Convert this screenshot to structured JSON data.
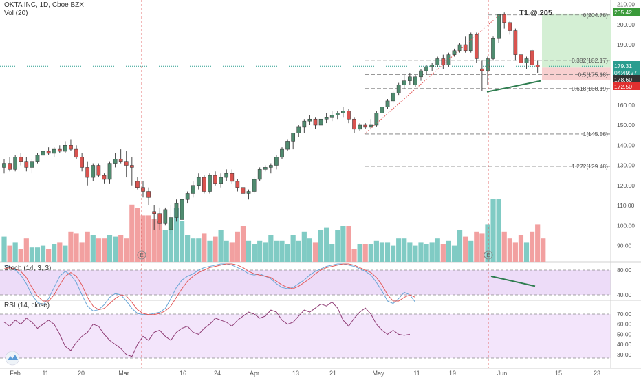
{
  "header": {
    "symbol_line": "OKTA INC, 1D, Cboe BZX",
    "vol_label": "Vol (20)"
  },
  "colors": {
    "up": "#53a292",
    "up_body": "#4f8b6f",
    "down": "#d9534f",
    "vol_up": "#80cbc4",
    "vol_down": "#f2a0a0",
    "stoch_k": "#6aa6d6",
    "stoch_d": "#e35b5b",
    "stoch_bg": "#e3c9f5",
    "rsi_line": "#8e3b74",
    "rsi_bg": "#f3e5fb",
    "target_zone": "#d4efd4",
    "stop_zone": "#f8d0d0",
    "trendline": "#2e7d4f",
    "fib": "#777777",
    "event_line": "#e05050"
  },
  "price_axis": {
    "ticks": [
      "210.00",
      "200.00",
      "190.00",
      "180.00",
      "170.00",
      "160.00",
      "150.00",
      "140.00",
      "130.00",
      "120.00",
      "110.00",
      "100.00",
      "90.00"
    ],
    "price_labels": [
      {
        "text": "205.42",
        "color": "#3a9a3a"
      },
      {
        "text": "179.31",
        "color": "#2a9d8f"
      },
      {
        "text": "04:49:27",
        "color": "#2a9d8f"
      },
      {
        "text": "178.60",
        "color": "#333333"
      },
      {
        "text": "172.50",
        "color": "#e03030"
      }
    ]
  },
  "stoch_axis": {
    "ticks": [
      "80.00",
      "40.00"
    ]
  },
  "rsi_axis": {
    "ticks": [
      "70.00",
      "60.00",
      "50.00",
      "40.00",
      "30.00"
    ]
  },
  "time_axis": {
    "labels": [
      "Feb",
      "11",
      "20",
      "Mar",
      "16",
      "24",
      "Apr",
      "13",
      "21",
      "May",
      "11",
      "19",
      "Jun",
      "15",
      "23"
    ]
  },
  "annotations": {
    "target": "T1 @ 205",
    "fib_levels": [
      "0(204.78)",
      "0.382(182.17)",
      "0.5(175.18)",
      "0.618(168.19)",
      "1(145.58)",
      "1.272(129.48)"
    ],
    "event_marker": "E"
  },
  "indicators": {
    "stoch_label": "Stoch (14, 3, 3)",
    "rsi_label": "RSI (14, close)"
  },
  "chart_data": {
    "type": "candlestick",
    "title": "OKTA INC, 1D, Cboe BZX",
    "ylim": [
      84,
      213
    ],
    "candles": [
      {
        "o": 129,
        "h": 133,
        "l": 126,
        "c": 131
      },
      {
        "o": 131,
        "h": 134,
        "l": 127,
        "c": 128
      },
      {
        "o": 128,
        "h": 135,
        "l": 127,
        "c": 134
      },
      {
        "o": 134,
        "h": 136,
        "l": 130,
        "c": 132
      },
      {
        "o": 132,
        "h": 134,
        "l": 127,
        "c": 129
      },
      {
        "o": 129,
        "h": 133,
        "l": 126,
        "c": 132
      },
      {
        "o": 132,
        "h": 136,
        "l": 131,
        "c": 135
      },
      {
        "o": 135,
        "h": 138,
        "l": 133,
        "c": 137
      },
      {
        "o": 137,
        "h": 139,
        "l": 135,
        "c": 136
      },
      {
        "o": 136,
        "h": 139,
        "l": 134,
        "c": 138
      },
      {
        "o": 138,
        "h": 140,
        "l": 136,
        "c": 137
      },
      {
        "o": 137,
        "h": 142,
        "l": 136,
        "c": 140
      },
      {
        "o": 140,
        "h": 143,
        "l": 137,
        "c": 138
      },
      {
        "o": 138,
        "h": 140,
        "l": 133,
        "c": 134
      },
      {
        "o": 134,
        "h": 136,
        "l": 127,
        "c": 129
      },
      {
        "o": 129,
        "h": 132,
        "l": 120,
        "c": 124
      },
      {
        "o": 124,
        "h": 131,
        "l": 122,
        "c": 130
      },
      {
        "o": 130,
        "h": 131,
        "l": 124,
        "c": 125
      },
      {
        "o": 125,
        "h": 126,
        "l": 121,
        "c": 123
      },
      {
        "o": 123,
        "h": 132,
        "l": 121,
        "c": 131
      },
      {
        "o": 131,
        "h": 136,
        "l": 129,
        "c": 133
      },
      {
        "o": 133,
        "h": 138,
        "l": 131,
        "c": 132
      },
      {
        "o": 132,
        "h": 137,
        "l": 124,
        "c": 130
      },
      {
        "o": 130,
        "h": 134,
        "l": 120,
        "c": 129
      },
      {
        "o": 122,
        "h": 124,
        "l": 118,
        "c": 119
      },
      {
        "o": 119,
        "h": 122,
        "l": 114,
        "c": 117
      },
      {
        "o": 117,
        "h": 119,
        "l": 110,
        "c": 114
      },
      {
        "o": 107,
        "h": 110,
        "l": 98,
        "c": 106
      },
      {
        "o": 106,
        "h": 109,
        "l": 98,
        "c": 101
      },
      {
        "o": 101,
        "h": 109,
        "l": 100,
        "c": 108
      },
      {
        "o": 98,
        "h": 110,
        "l": 96,
        "c": 104
      },
      {
        "o": 104,
        "h": 113,
        "l": 102,
        "c": 111
      },
      {
        "o": 103,
        "h": 115,
        "l": 101,
        "c": 113
      },
      {
        "o": 113,
        "h": 117,
        "l": 111,
        "c": 116
      },
      {
        "o": 116,
        "h": 122,
        "l": 114,
        "c": 120
      },
      {
        "o": 120,
        "h": 126,
        "l": 118,
        "c": 124
      },
      {
        "o": 124,
        "h": 125,
        "l": 116,
        "c": 117
      },
      {
        "o": 117,
        "h": 126,
        "l": 116,
        "c": 125
      },
      {
        "o": 125,
        "h": 127,
        "l": 120,
        "c": 121
      },
      {
        "o": 121,
        "h": 126,
        "l": 119,
        "c": 124
      },
      {
        "o": 124,
        "h": 128,
        "l": 122,
        "c": 126
      },
      {
        "o": 126,
        "h": 128,
        "l": 121,
        "c": 122
      },
      {
        "o": 122,
        "h": 123,
        "l": 117,
        "c": 119
      },
      {
        "o": 119,
        "h": 121,
        "l": 114,
        "c": 116
      },
      {
        "o": 116,
        "h": 118,
        "l": 113,
        "c": 117
      },
      {
        "o": 117,
        "h": 124,
        "l": 116,
        "c": 123
      },
      {
        "o": 123,
        "h": 129,
        "l": 122,
        "c": 128
      },
      {
        "o": 128,
        "h": 130,
        "l": 127,
        "c": 129
      },
      {
        "o": 129,
        "h": 131,
        "l": 126,
        "c": 130
      },
      {
        "o": 130,
        "h": 135,
        "l": 128,
        "c": 134
      },
      {
        "o": 134,
        "h": 139,
        "l": 133,
        "c": 138
      },
      {
        "o": 138,
        "h": 143,
        "l": 137,
        "c": 142
      },
      {
        "o": 142,
        "h": 145,
        "l": 138,
        "c": 146
      },
      {
        "o": 146,
        "h": 150,
        "l": 144,
        "c": 149
      },
      {
        "o": 149,
        "h": 153,
        "l": 146,
        "c": 152
      },
      {
        "o": 152,
        "h": 155,
        "l": 150,
        "c": 153
      },
      {
        "o": 153,
        "h": 154,
        "l": 148,
        "c": 150
      },
      {
        "o": 150,
        "h": 154,
        "l": 149,
        "c": 153
      },
      {
        "o": 153,
        "h": 156,
        "l": 151,
        "c": 154
      },
      {
        "o": 154,
        "h": 157,
        "l": 152,
        "c": 155
      },
      {
        "o": 155,
        "h": 157,
        "l": 153,
        "c": 156
      },
      {
        "o": 156,
        "h": 159,
        "l": 154,
        "c": 157
      },
      {
        "o": 157,
        "h": 158,
        "l": 151,
        "c": 153
      },
      {
        "o": 153,
        "h": 154,
        "l": 146,
        "c": 148
      },
      {
        "o": 148,
        "h": 151,
        "l": 147,
        "c": 150
      },
      {
        "o": 150,
        "h": 151,
        "l": 148,
        "c": 149
      },
      {
        "o": 149,
        "h": 153,
        "l": 148,
        "c": 150
      },
      {
        "o": 150,
        "h": 157,
        "l": 149,
        "c": 156
      },
      {
        "o": 156,
        "h": 160,
        "l": 155,
        "c": 159
      },
      {
        "o": 159,
        "h": 163,
        "l": 158,
        "c": 162
      },
      {
        "o": 162,
        "h": 167,
        "l": 161,
        "c": 166
      },
      {
        "o": 166,
        "h": 171,
        "l": 165,
        "c": 170
      },
      {
        "o": 170,
        "h": 175,
        "l": 168,
        "c": 172
      },
      {
        "o": 172,
        "h": 176,
        "l": 170,
        "c": 174
      },
      {
        "o": 170,
        "h": 175,
        "l": 169,
        "c": 174
      },
      {
        "o": 174,
        "h": 178,
        "l": 172,
        "c": 177
      },
      {
        "o": 177,
        "h": 180,
        "l": 175,
        "c": 179
      },
      {
        "o": 179,
        "h": 181,
        "l": 177,
        "c": 180
      },
      {
        "o": 180,
        "h": 184,
        "l": 179,
        "c": 183
      },
      {
        "o": 183,
        "h": 185,
        "l": 178,
        "c": 180
      },
      {
        "o": 180,
        "h": 186,
        "l": 179,
        "c": 185
      },
      {
        "o": 185,
        "h": 188,
        "l": 184,
        "c": 187
      },
      {
        "o": 187,
        "h": 191,
        "l": 186,
        "c": 190
      },
      {
        "o": 190,
        "h": 194,
        "l": 186,
        "c": 187
      },
      {
        "o": 187,
        "h": 196,
        "l": 186,
        "c": 195
      },
      {
        "o": 195,
        "h": 196,
        "l": 181,
        "c": 183
      },
      {
        "o": 178,
        "h": 182,
        "l": 167,
        "c": 177
      },
      {
        "o": 177,
        "h": 184,
        "l": 170,
        "c": 183
      },
      {
        "o": 183,
        "h": 194,
        "l": 182,
        "c": 193
      },
      {
        "o": 193,
        "h": 205,
        "l": 191,
        "c": 205
      },
      {
        "o": 205,
        "h": 206,
        "l": 198,
        "c": 201
      },
      {
        "o": 201,
        "h": 202,
        "l": 195,
        "c": 197
      },
      {
        "o": 197,
        "h": 198,
        "l": 182,
        "c": 185
      },
      {
        "o": 185,
        "h": 187,
        "l": 179,
        "c": 181
      },
      {
        "o": 181,
        "h": 184,
        "l": 178,
        "c": 183
      },
      {
        "o": 187,
        "h": 188,
        "l": 178,
        "c": 180
      },
      {
        "o": 180,
        "h": 182,
        "l": 176,
        "c": 179
      }
    ],
    "volume_pct": [
      28,
      18,
      22,
      14,
      26,
      16,
      16,
      18,
      14,
      20,
      22,
      18,
      34,
      32,
      22,
      34,
      30,
      26,
      26,
      30,
      28,
      30,
      26,
      64,
      60,
      52,
      52,
      48,
      46,
      36,
      44,
      60,
      46,
      30,
      26,
      26,
      32,
      24,
      28,
      36,
      24,
      22,
      34,
      40,
      24,
      20,
      24,
      22,
      30,
      24,
      24,
      20,
      30,
      24,
      34,
      26,
      22,
      36,
      38,
      20,
      36,
      40,
      40,
      14,
      20,
      20,
      20,
      24,
      22,
      22,
      18,
      26,
      26,
      22,
      18,
      22,
      20,
      22,
      26,
      20,
      24,
      18,
      36,
      28,
      24,
      34,
      32,
      42,
      70,
      70,
      34,
      26,
      22,
      30,
      22,
      34,
      42,
      26
    ],
    "stoch_k": [
      88,
      86,
      80,
      72,
      58,
      40,
      28,
      24,
      34,
      52,
      70,
      78,
      72,
      60,
      40,
      22,
      14,
      16,
      24,
      36,
      42,
      40,
      30,
      18,
      10,
      8,
      8,
      10,
      12,
      18,
      34,
      52,
      64,
      70,
      74,
      80,
      84,
      86,
      88,
      90,
      90,
      88,
      84,
      80,
      74,
      72,
      74,
      70,
      66,
      58,
      52,
      50,
      52,
      58,
      64,
      72,
      78,
      82,
      86,
      88,
      90,
      90,
      88,
      86,
      82,
      78,
      72,
      60,
      46,
      30,
      26,
      34,
      44,
      40,
      28
    ],
    "stoch_d": [
      82,
      84,
      82,
      78,
      68,
      52,
      38,
      30,
      30,
      40,
      56,
      70,
      76,
      70,
      56,
      36,
      22,
      16,
      18,
      26,
      34,
      40,
      38,
      28,
      16,
      10,
      8,
      8,
      10,
      14,
      22,
      36,
      50,
      62,
      70,
      76,
      80,
      84,
      86,
      88,
      90,
      90,
      88,
      84,
      78,
      74,
      72,
      70,
      68,
      62,
      56,
      52,
      50,
      54,
      60,
      66,
      74,
      80,
      84,
      86,
      88,
      90,
      90,
      88,
      84,
      80,
      76,
      68,
      56,
      40,
      30,
      30,
      36,
      40,
      36
    ],
    "rsi": [
      62,
      58,
      64,
      60,
      66,
      62,
      56,
      60,
      64,
      60,
      50,
      38,
      34,
      42,
      48,
      52,
      60,
      58,
      50,
      44,
      40,
      36,
      30,
      28,
      40,
      48,
      44,
      52,
      54,
      48,
      44,
      52,
      56,
      58,
      52,
      50,
      56,
      60,
      66,
      64,
      62,
      58,
      64,
      68,
      72,
      70,
      66,
      68,
      74,
      72,
      64,
      60,
      62,
      68,
      74,
      72,
      76,
      80,
      78,
      82,
      76,
      64,
      58,
      66,
      72,
      76,
      70,
      60,
      54,
      50,
      54,
      50,
      49,
      50
    ],
    "fib": [
      {
        "label": "0(204.78)",
        "value": 204.78
      },
      {
        "label": "0.382(182.17)",
        "value": 182.17
      },
      {
        "label": "0.5(175.18)",
        "value": 175.18
      },
      {
        "label": "0.618(168.19)",
        "value": 168.19
      },
      {
        "label": "1(145.58)",
        "value": 145.58
      },
      {
        "label": "1.272(129.48)",
        "value": 129.48
      }
    ],
    "current_price": 179.31,
    "target_price": 205.42,
    "entry_price": 178.6,
    "stop_price": 172.5
  }
}
